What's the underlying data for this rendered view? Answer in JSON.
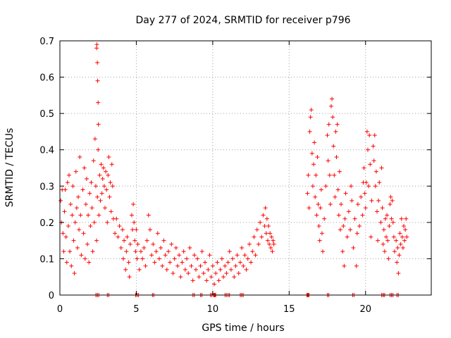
{
  "chart_data": {
    "type": "scatter",
    "title": "Day 277 of 2024, SRMTID for receiver p796",
    "xlabel": "GPS time / hours",
    "ylabel": "SRMTID / TECUs",
    "xlim": [
      0,
      24.3
    ],
    "ylim": [
      0,
      0.7
    ],
    "xticks": [
      0,
      5,
      10,
      15,
      20
    ],
    "yticks": [
      0,
      0.1,
      0.2,
      0.3,
      0.4,
      0.5,
      0.6,
      0.7
    ],
    "xtick_labels": [
      "0",
      "5",
      "10",
      "15",
      "20"
    ],
    "ytick_labels": [
      "0",
      "0.1",
      "0.2",
      "0.3",
      "0.4",
      "0.5",
      "0.6",
      "0.7"
    ],
    "grid": true,
    "marker": "plus",
    "color": "#ff0000",
    "series": [
      {
        "name": "SRMTID",
        "points": [
          [
            0.05,
            0.26
          ],
          [
            0.1,
            0.2
          ],
          [
            0.15,
            0.29
          ],
          [
            0.2,
            0.17
          ],
          [
            0.25,
            0.12
          ],
          [
            0.3,
            0.23
          ],
          [
            0.35,
            0.29
          ],
          [
            0.4,
            0.16
          ],
          [
            0.45,
            0.09
          ],
          [
            0.5,
            0.31
          ],
          [
            0.55,
            0.19
          ],
          [
            0.6,
            0.33
          ],
          [
            0.65,
            0.12
          ],
          [
            0.7,
            0.25
          ],
          [
            0.75,
            0.08
          ],
          [
            0.8,
            0.22
          ],
          [
            0.85,
            0.3
          ],
          [
            0.9,
            0.15
          ],
          [
            0.95,
            0.06
          ],
          [
            1.0,
            0.2
          ],
          [
            1.05,
            0.34
          ],
          [
            1.1,
            0.24
          ],
          [
            1.15,
            0.13
          ],
          [
            1.2,
            0.27
          ],
          [
            1.25,
            0.18
          ],
          [
            1.3,
            0.38
          ],
          [
            1.35,
            0.22
          ],
          [
            1.4,
            0.11
          ],
          [
            1.5,
            0.29
          ],
          [
            1.55,
            0.17
          ],
          [
            1.6,
            0.35
          ],
          [
            1.65,
            0.1
          ],
          [
            1.7,
            0.25
          ],
          [
            1.75,
            0.32
          ],
          [
            1.8,
            0.14
          ],
          [
            1.85,
            0.22
          ],
          [
            1.9,
            0.09
          ],
          [
            1.95,
            0.28
          ],
          [
            2.0,
            0.19
          ],
          [
            2.05,
            0.31
          ],
          [
            2.1,
            0.24
          ],
          [
            2.15,
            0.12
          ],
          [
            2.2,
            0.37
          ],
          [
            2.25,
            0.2
          ],
          [
            2.3,
            0.43
          ],
          [
            2.35,
            0.3
          ],
          [
            2.4,
            0.15
          ],
          [
            2.45,
            0.27
          ],
          [
            2.5,
            0.4
          ],
          [
            2.55,
            0.22
          ],
          [
            2.6,
            0.33
          ],
          [
            2.65,
            0.26
          ],
          [
            2.7,
            0.36
          ],
          [
            2.75,
            0.28
          ],
          [
            2.8,
            0.32
          ],
          [
            2.85,
            0.35
          ],
          [
            2.9,
            0.3
          ],
          [
            2.95,
            0.24
          ],
          [
            3.0,
            0.34
          ],
          [
            3.05,
            0.29
          ],
          [
            3.1,
            0.2
          ],
          [
            3.15,
            0.33
          ],
          [
            3.2,
            0.38
          ],
          [
            3.25,
            0.27
          ],
          [
            3.3,
            0.31
          ],
          [
            3.35,
            0.23
          ],
          [
            3.4,
            0.36
          ],
          [
            3.45,
            0.3
          ],
          [
            3.5,
            0.21
          ],
          [
            2.4,
            0.68
          ],
          [
            2.42,
            0.69
          ],
          [
            2.45,
            0.64
          ],
          [
            2.47,
            0.59
          ],
          [
            2.5,
            0.53
          ],
          [
            2.52,
            0.47
          ],
          [
            3.6,
            0.17
          ],
          [
            3.7,
            0.21
          ],
          [
            3.8,
            0.16
          ],
          [
            3.9,
            0.19
          ],
          [
            4.0,
            0.13
          ],
          [
            4.1,
            0.18
          ],
          [
            4.15,
            0.1
          ],
          [
            4.2,
            0.15
          ],
          [
            4.3,
            0.07
          ],
          [
            4.35,
            0.12
          ],
          [
            4.4,
            0.16
          ],
          [
            4.5,
            0.09
          ],
          [
            4.55,
            0.05
          ],
          [
            4.6,
            0.14
          ],
          [
            4.7,
            0.22
          ],
          [
            4.75,
            0.18
          ],
          [
            4.8,
            0.25
          ],
          [
            4.85,
            0.2
          ],
          [
            4.9,
            0.15
          ],
          [
            4.95,
            0.12
          ],
          [
            5.0,
            0.18
          ],
          [
            5.05,
            0.1
          ],
          [
            5.1,
            0.14
          ],
          [
            5.2,
            0.07
          ],
          [
            5.3,
            0.12
          ],
          [
            5.4,
            0.1
          ],
          [
            5.5,
            0.13
          ],
          [
            5.6,
            0.08
          ],
          [
            5.7,
            0.15
          ],
          [
            5.8,
            0.22
          ],
          [
            5.9,
            0.18
          ],
          [
            6.0,
            0.11
          ],
          [
            6.1,
            0.14
          ],
          [
            6.2,
            0.09
          ],
          [
            6.3,
            0.12
          ],
          [
            6.4,
            0.17
          ],
          [
            6.5,
            0.1
          ],
          [
            6.6,
            0.13
          ],
          [
            6.7,
            0.08
          ],
          [
            6.8,
            0.15
          ],
          [
            6.9,
            0.11
          ],
          [
            7.0,
            0.07
          ],
          [
            7.1,
            0.12
          ],
          [
            7.2,
            0.09
          ],
          [
            7.3,
            0.14
          ],
          [
            7.4,
            0.06
          ],
          [
            7.5,
            0.1
          ],
          [
            7.6,
            0.13
          ],
          [
            7.7,
            0.08
          ],
          [
            7.8,
            0.11
          ],
          [
            7.9,
            0.05
          ],
          [
            8.0,
            0.09
          ],
          [
            8.1,
            0.12
          ],
          [
            8.2,
            0.07
          ],
          [
            8.3,
            0.1
          ],
          [
            8.4,
            0.06
          ],
          [
            8.5,
            0.13
          ],
          [
            8.6,
            0.08
          ],
          [
            8.7,
            0.04
          ],
          [
            8.8,
            0.11
          ],
          [
            8.9,
            0.07
          ],
          [
            9.0,
            0.1
          ],
          [
            9.1,
            0.05
          ],
          [
            9.2,
            0.08
          ],
          [
            9.3,
            0.12
          ],
          [
            9.4,
            0.06
          ],
          [
            9.5,
            0.09
          ],
          [
            9.6,
            0.04
          ],
          [
            9.7,
            0.07
          ],
          [
            9.8,
            0.11
          ],
          [
            9.9,
            0.05
          ],
          [
            10.0,
            0.08
          ],
          [
            10.1,
            0.03
          ],
          [
            10.2,
            0.06
          ],
          [
            10.3,
            0.09
          ],
          [
            10.4,
            0.04
          ],
          [
            10.5,
            0.07
          ],
          [
            10.6,
            0.1
          ],
          [
            10.7,
            0.05
          ],
          [
            10.8,
            0.08
          ],
          [
            10.9,
            0.06
          ],
          [
            11.0,
            0.09
          ],
          [
            11.1,
            0.12
          ],
          [
            11.2,
            0.07
          ],
          [
            11.3,
            0.1
          ],
          [
            11.4,
            0.05
          ],
          [
            11.5,
            0.08
          ],
          [
            11.6,
            0.11
          ],
          [
            11.7,
            0.06
          ],
          [
            11.8,
            0.09
          ],
          [
            11.9,
            0.13
          ],
          [
            12.0,
            0.08
          ],
          [
            12.1,
            0.11
          ],
          [
            12.2,
            0.07
          ],
          [
            12.3,
            0.1
          ],
          [
            12.4,
            0.14
          ],
          [
            12.5,
            0.09
          ],
          [
            12.6,
            0.12
          ],
          [
            12.7,
            0.16
          ],
          [
            12.8,
            0.11
          ],
          [
            12.9,
            0.18
          ],
          [
            13.0,
            0.14
          ],
          [
            13.1,
            0.2
          ],
          [
            13.2,
            0.16
          ],
          [
            13.3,
            0.22
          ],
          [
            13.4,
            0.19
          ],
          [
            13.45,
            0.24
          ],
          [
            13.5,
            0.17
          ],
          [
            13.55,
            0.21
          ],
          [
            13.6,
            0.15
          ],
          [
            13.65,
            0.19
          ],
          [
            13.7,
            0.14
          ],
          [
            13.75,
            0.17
          ],
          [
            13.8,
            0.13
          ],
          [
            13.85,
            0.16
          ],
          [
            13.9,
            0.12
          ],
          [
            13.95,
            0.15
          ],
          [
            14.0,
            0.14
          ],
          [
            16.2,
            0.28
          ],
          [
            16.25,
            0.33
          ],
          [
            16.3,
            0.24
          ],
          [
            16.35,
            0.45
          ],
          [
            16.4,
            0.49
          ],
          [
            16.45,
            0.51
          ],
          [
            16.5,
            0.39
          ],
          [
            16.55,
            0.3
          ],
          [
            16.6,
            0.36
          ],
          [
            16.65,
            0.42
          ],
          [
            16.7,
            0.27
          ],
          [
            16.75,
            0.33
          ],
          [
            16.8,
            0.22
          ],
          [
            16.85,
            0.38
          ],
          [
            16.9,
            0.25
          ],
          [
            16.95,
            0.19
          ],
          [
            17.0,
            0.15
          ],
          [
            17.05,
            0.24
          ],
          [
            17.1,
            0.29
          ],
          [
            17.15,
            0.17
          ],
          [
            17.2,
            0.12
          ],
          [
            17.3,
            0.21
          ],
          [
            17.4,
            0.3
          ],
          [
            17.5,
            0.44
          ],
          [
            17.55,
            0.37
          ],
          [
            17.6,
            0.47
          ],
          [
            17.65,
            0.33
          ],
          [
            17.7,
            0.25
          ],
          [
            17.75,
            0.52
          ],
          [
            17.8,
            0.54
          ],
          [
            17.85,
            0.49
          ],
          [
            17.9,
            0.41
          ],
          [
            17.95,
            0.33
          ],
          [
            18.0,
            0.27
          ],
          [
            18.05,
            0.45
          ],
          [
            18.1,
            0.38
          ],
          [
            18.15,
            0.47
          ],
          [
            18.2,
            0.29
          ],
          [
            18.25,
            0.22
          ],
          [
            18.3,
            0.34
          ],
          [
            18.35,
            0.18
          ],
          [
            18.4,
            0.25
          ],
          [
            18.5,
            0.12
          ],
          [
            18.55,
            0.19
          ],
          [
            18.6,
            0.08
          ],
          [
            18.65,
            0.21
          ],
          [
            18.7,
            0.28
          ],
          [
            18.8,
            0.16
          ],
          [
            18.9,
            0.23
          ],
          [
            19.0,
            0.18
          ],
          [
            19.05,
            0.3
          ],
          [
            19.1,
            0.26
          ],
          [
            19.2,
            0.13
          ],
          [
            19.3,
            0.21
          ],
          [
            19.4,
            0.08
          ],
          [
            19.45,
            0.17
          ],
          [
            19.5,
            0.25
          ],
          [
            19.6,
            0.19
          ],
          [
            19.7,
            0.27
          ],
          [
            19.8,
            0.22
          ],
          [
            19.85,
            0.31
          ],
          [
            19.9,
            0.35
          ],
          [
            19.95,
            0.28
          ],
          [
            20.0,
            0.24
          ],
          [
            20.05,
            0.31
          ],
          [
            20.1,
            0.45
          ],
          [
            20.15,
            0.4
          ],
          [
            20.2,
            0.3
          ],
          [
            20.25,
            0.44
          ],
          [
            20.3,
            0.36
          ],
          [
            20.35,
            0.16
          ],
          [
            20.4,
            0.26
          ],
          [
            20.5,
            0.41
          ],
          [
            20.55,
            0.37
          ],
          [
            20.6,
            0.44
          ],
          [
            20.65,
            0.3
          ],
          [
            20.7,
            0.34
          ],
          [
            20.75,
            0.23
          ],
          [
            20.8,
            0.15
          ],
          [
            20.85,
            0.26
          ],
          [
            20.9,
            0.31
          ],
          [
            21.0,
            0.2
          ],
          [
            21.05,
            0.35
          ],
          [
            21.1,
            0.24
          ],
          [
            21.15,
            0.14
          ],
          [
            21.2,
            0.18
          ],
          [
            21.25,
            0.12
          ],
          [
            21.3,
            0.21
          ],
          [
            21.35,
            0.16
          ],
          [
            21.4,
            0.22
          ],
          [
            21.45,
            0.15
          ],
          [
            21.5,
            0.1
          ],
          [
            21.55,
            0.19
          ],
          [
            21.6,
            0.25
          ],
          [
            21.65,
            0.27
          ],
          [
            21.7,
            0.21
          ],
          [
            21.75,
            0.26
          ],
          [
            21.8,
            0.2
          ],
          [
            21.85,
            0.16
          ],
          [
            21.9,
            0.12
          ],
          [
            22.0,
            0.15
          ],
          [
            22.05,
            0.09
          ],
          [
            22.1,
            0.13
          ],
          [
            22.15,
            0.06
          ],
          [
            22.2,
            0.11
          ],
          [
            22.25,
            0.17
          ],
          [
            22.3,
            0.14
          ],
          [
            22.35,
            0.21
          ],
          [
            22.4,
            0.16
          ],
          [
            22.45,
            0.13
          ],
          [
            22.5,
            0.19
          ],
          [
            22.55,
            0.15
          ],
          [
            22.6,
            0.18
          ],
          [
            22.65,
            0.21
          ],
          [
            22.7,
            0.16
          ]
        ]
      }
    ],
    "near_zero_markers_x": [
      2.4,
      2.5,
      3.15,
      5.0,
      5.1,
      6.1,
      8.75,
      9.25,
      9.9,
      10.1,
      10.15,
      10.85,
      11.05,
      11.85,
      11.95,
      16.2,
      16.25,
      17.55,
      19.2,
      21.1,
      21.2,
      21.65,
      21.75,
      22.1
    ]
  }
}
